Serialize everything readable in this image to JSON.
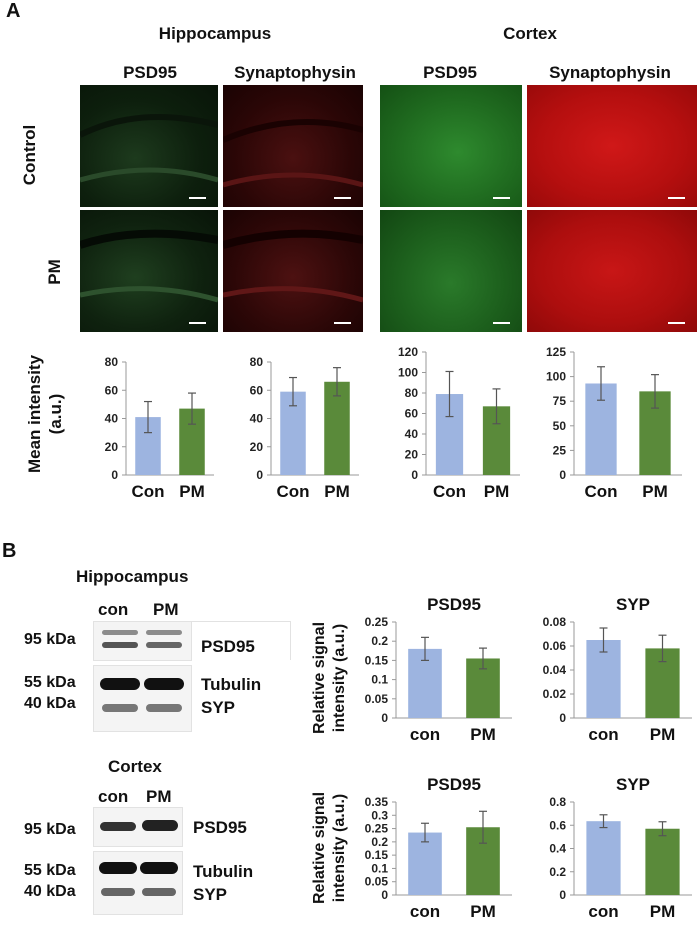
{
  "panel_a": {
    "letter": "A",
    "regions": [
      "Hippocampus",
      "Cortex"
    ],
    "stains": [
      "PSD95",
      "Synaptophysin",
      "PSD95",
      "Synaptophysin"
    ],
    "rows": [
      "Control",
      "PM"
    ],
    "ylabel": "Mean intensity\n(a.u.)",
    "ylabel_line1": "Mean intensity",
    "ylabel_line2": "(a.u.)"
  },
  "panel_b": {
    "letter": "B",
    "blot_hippocampus": {
      "title": "Hippocampus",
      "lanes": [
        "con",
        "PM"
      ],
      "markers": [
        "95 kDa",
        "55 kDa",
        "40 kDa"
      ],
      "proteins": [
        "PSD95",
        "Tubulin",
        "SYP"
      ]
    },
    "blot_cortex": {
      "title": "Cortex",
      "lanes": [
        "con",
        "PM"
      ],
      "markers": [
        "95 kDa",
        "55 kDa",
        "40 kDa"
      ],
      "proteins": [
        "PSD95",
        "Tubulin",
        "SYP"
      ]
    },
    "ylabel_line1": "Relative signal",
    "ylabel_line2": "intensity (a.u.)"
  },
  "colors": {
    "con": "#9db4e0",
    "pm": "#5a8a3a",
    "error": "#555555",
    "axis": "#999999"
  },
  "chart_data": [
    {
      "type": "bar",
      "panel": "A",
      "region": "Hippocampus",
      "stain": "PSD95",
      "categories": [
        "Con",
        "PM"
      ],
      "values": [
        41,
        47
      ],
      "errors": [
        11,
        11
      ],
      "ylim": [
        0,
        80
      ],
      "yticks": [
        0,
        20,
        40,
        60,
        80
      ],
      "ytick_labels": [
        "0",
        "20",
        "40",
        "60",
        "80"
      ]
    },
    {
      "type": "bar",
      "panel": "A",
      "region": "Hippocampus",
      "stain": "Synaptophysin",
      "categories": [
        "Con",
        "PM"
      ],
      "values": [
        59,
        66
      ],
      "errors": [
        10,
        10
      ],
      "ylim": [
        0,
        80
      ],
      "yticks": [
        0,
        20,
        40,
        60,
        80
      ],
      "ytick_labels": [
        "0",
        "20",
        "40",
        "60",
        "80"
      ]
    },
    {
      "type": "bar",
      "panel": "A",
      "region": "Cortex",
      "stain": "PSD95",
      "categories": [
        "Con",
        "PM"
      ],
      "values": [
        79,
        67
      ],
      "errors": [
        22,
        17
      ],
      "ylim": [
        0,
        120
      ],
      "yticks": [
        0,
        20,
        40,
        60,
        80,
        100,
        120
      ],
      "ytick_labels": [
        "0",
        "20",
        "40",
        "60",
        "80",
        "100",
        "120"
      ]
    },
    {
      "type": "bar",
      "panel": "A",
      "region": "Cortex",
      "stain": "Synaptophysin",
      "categories": [
        "Con",
        "PM"
      ],
      "values": [
        93,
        85
      ],
      "errors": [
        17,
        17
      ],
      "ylim": [
        0,
        125
      ],
      "yticks": [
        0,
        25,
        50,
        75,
        100,
        125
      ],
      "ytick_labels": [
        "0",
        "25",
        "50",
        "75",
        "100",
        "125"
      ]
    },
    {
      "type": "bar",
      "panel": "B",
      "region": "Hippocampus",
      "title": "PSD95",
      "categories": [
        "con",
        "PM"
      ],
      "values": [
        0.18,
        0.155
      ],
      "errors": [
        0.03,
        0.027
      ],
      "ylim": [
        0,
        0.25
      ],
      "yticks": [
        0,
        0.05,
        0.1,
        0.15,
        0.2,
        0.25
      ],
      "ytick_labels": [
        "0",
        "0.05",
        "0.1",
        "0.15",
        "0.2",
        "0.25"
      ]
    },
    {
      "type": "bar",
      "panel": "B",
      "region": "Hippocampus",
      "title": "SYP",
      "categories": [
        "con",
        "PM"
      ],
      "values": [
        0.065,
        0.058
      ],
      "errors": [
        0.01,
        0.011
      ],
      "ylim": [
        0,
        0.08
      ],
      "yticks": [
        0,
        0.02,
        0.04,
        0.06,
        0.08
      ],
      "ytick_labels": [
        "0",
        "0.02",
        "0.04",
        "0.06",
        "0.08"
      ]
    },
    {
      "type": "bar",
      "panel": "B",
      "region": "Cortex",
      "title": "PSD95",
      "categories": [
        "con",
        "PM"
      ],
      "values": [
        0.235,
        0.255
      ],
      "errors": [
        0.035,
        0.06
      ],
      "ylim": [
        0,
        0.35
      ],
      "yticks": [
        0,
        0.05,
        0.1,
        0.15,
        0.2,
        0.25,
        0.3,
        0.35
      ],
      "ytick_labels": [
        "0",
        "0.05",
        "0.1",
        "0.15",
        "0.2",
        "0.25",
        "0.3",
        "0.35"
      ]
    },
    {
      "type": "bar",
      "panel": "B",
      "region": "Cortex",
      "title": "SYP",
      "categories": [
        "con",
        "PM"
      ],
      "values": [
        0.635,
        0.57
      ],
      "errors": [
        0.055,
        0.06
      ],
      "ylim": [
        0,
        0.8
      ],
      "yticks": [
        0,
        0.2,
        0.4,
        0.6,
        0.8
      ],
      "ytick_labels": [
        "0",
        "0.2",
        "0.4",
        "0.6",
        "0.8"
      ]
    }
  ]
}
